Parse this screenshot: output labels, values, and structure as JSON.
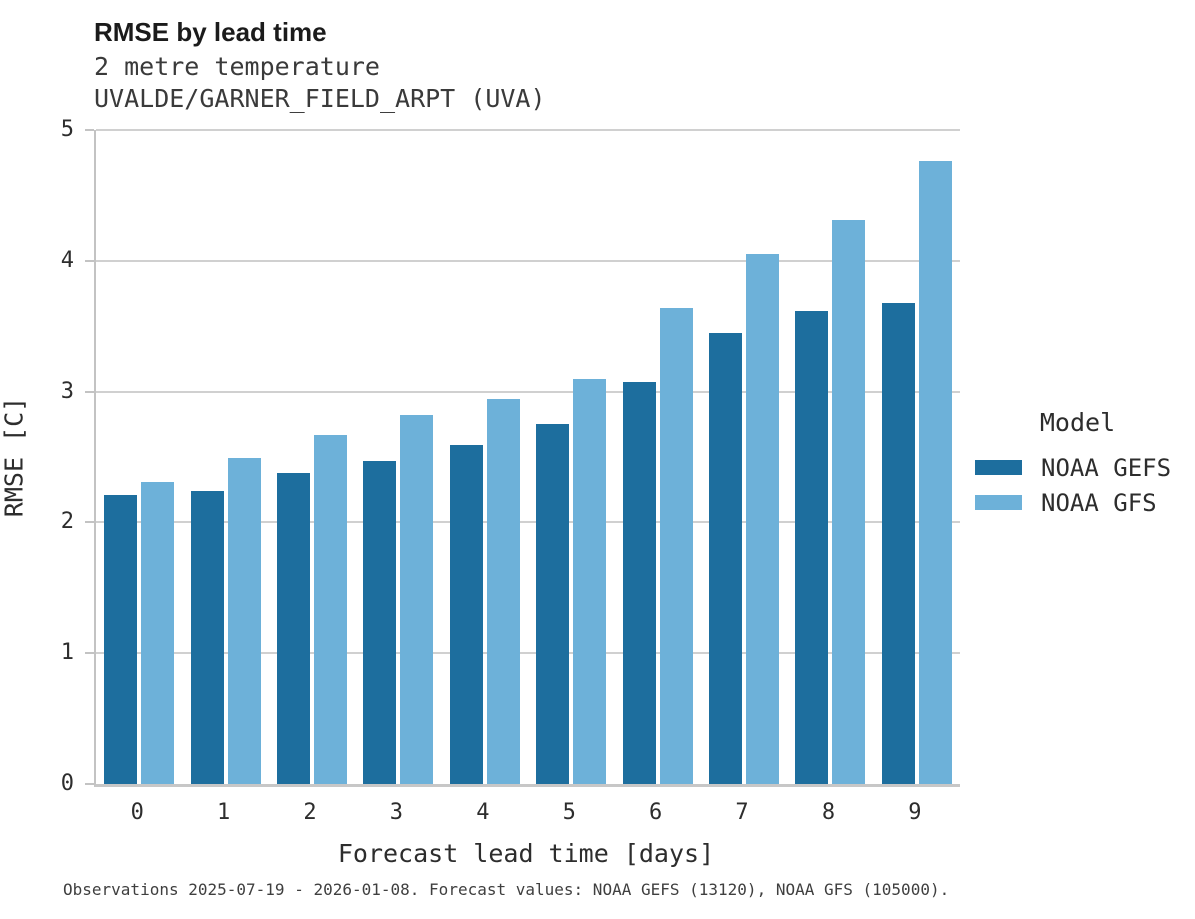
{
  "header": {
    "title": "RMSE by lead time",
    "subtitle_line1": "2 metre temperature",
    "subtitle_line2": "UVALDE/GARNER_FIELD_ARPT (UVA)"
  },
  "legend": {
    "title": "Model",
    "entries": [
      {
        "label": "NOAA GEFS",
        "color": "#1d6e9e"
      },
      {
        "label": "NOAA GFS",
        "color": "#6db1d9"
      }
    ]
  },
  "caption": "Observations 2025-07-19 - 2026-01-08. Forecast values: NOAA GEFS (13120), NOAA GFS (105000).",
  "chart_data": {
    "type": "bar",
    "title": "RMSE by lead time",
    "subtitle": [
      "2 metre temperature",
      "UVALDE/GARNER_FIELD_ARPT (UVA)"
    ],
    "categories": [
      "0",
      "1",
      "2",
      "3",
      "4",
      "5",
      "6",
      "7",
      "8",
      "9"
    ],
    "series": [
      {
        "name": "NOAA GEFS",
        "color": "#1d6e9e",
        "values": [
          2.21,
          2.24,
          2.38,
          2.47,
          2.59,
          2.75,
          3.07,
          3.45,
          3.62,
          3.68
        ]
      },
      {
        "name": "NOAA GFS",
        "color": "#6db1d9",
        "values": [
          2.31,
          2.49,
          2.67,
          2.82,
          2.94,
          3.1,
          3.64,
          4.05,
          4.31,
          4.76
        ]
      }
    ],
    "xlabel": "Forecast lead time [days]",
    "ylabel": "RMSE [C]",
    "ylim": [
      0,
      5
    ],
    "yticks": [
      0,
      1,
      2,
      3,
      4,
      5
    ],
    "grid": true,
    "legend_position": "right",
    "legend_title": "Model"
  },
  "colors": {
    "gefs": "#1d6e9e",
    "gfs": "#6db1d9",
    "gridline": "#d0d0d0",
    "spine": "#c3c3c3"
  }
}
